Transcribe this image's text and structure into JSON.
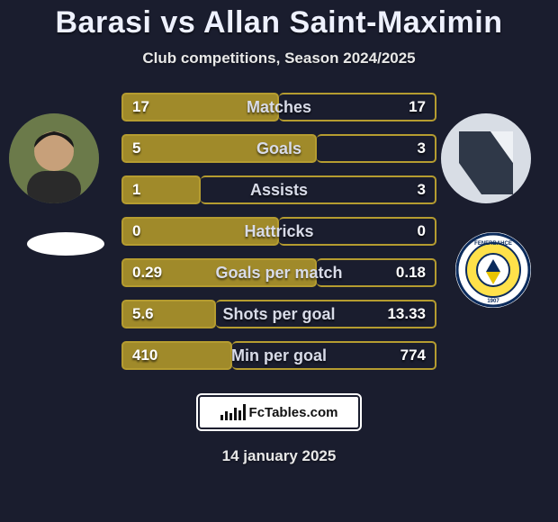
{
  "title": {
    "player1": "Barasi",
    "vs": "vs",
    "player2": "Allan Saint-Maximin"
  },
  "subtitle": "Club competitions, Season 2024/2025",
  "date": "14 january 2025",
  "footer_brand": "FcTables.com",
  "colors": {
    "bg": "#1a1d2e",
    "bar_fill": "#a08a2a",
    "bar_border": "#b59c30",
    "text": "#e8e8e8"
  },
  "players": {
    "left": {
      "name": "Barasi"
    },
    "right": {
      "name": "Allan Saint-Maximin"
    }
  },
  "stats": [
    {
      "label": "Matches",
      "left_val": "17",
      "right_val": "17",
      "left_pct": 50,
      "right_pct": 50
    },
    {
      "label": "Goals",
      "left_val": "5",
      "right_val": "3",
      "left_pct": 62,
      "right_pct": 38
    },
    {
      "label": "Assists",
      "left_val": "1",
      "right_val": "3",
      "left_pct": 25,
      "right_pct": 75
    },
    {
      "label": "Hattricks",
      "left_val": "0",
      "right_val": "0",
      "left_pct": 50,
      "right_pct": 50
    },
    {
      "label": "Goals per match",
      "left_val": "0.29",
      "right_val": "0.18",
      "left_pct": 62,
      "right_pct": 38
    },
    {
      "label": "Shots per goal",
      "left_val": "5.6",
      "right_val": "13.33",
      "left_pct": 30,
      "right_pct": 70
    },
    {
      "label": "Min per goal",
      "left_val": "410",
      "right_val": "774",
      "left_pct": 35,
      "right_pct": 65
    }
  ]
}
